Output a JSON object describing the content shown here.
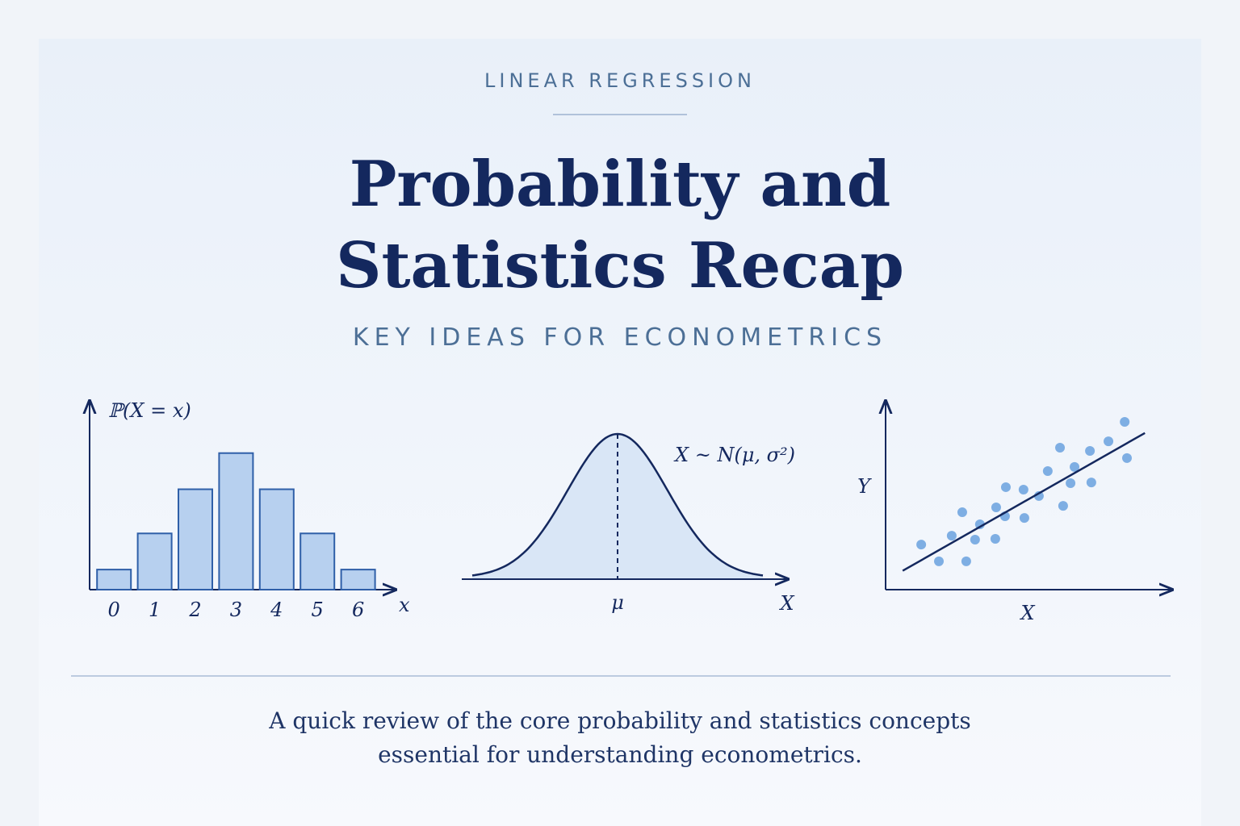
{
  "header": {
    "eyebrow": "LINEAR REGRESSION",
    "title_lines": [
      "Probability and",
      "Statistics Recap"
    ],
    "subtitle": "KEY IDEAS FOR ECONOMETRICS"
  },
  "chart_data": [
    {
      "type": "bar",
      "ylabel": "ℙ(X = x)",
      "xlabel": "x",
      "categories": [
        "0",
        "1",
        "2",
        "3",
        "4",
        "5",
        "6"
      ],
      "values": [
        0.05,
        0.14,
        0.25,
        0.34,
        0.25,
        0.14,
        0.05
      ],
      "ylim": [
        0,
        0.47
      ],
      "color": "#b7d0ef"
    },
    {
      "type": "density",
      "annotation": "X ~ N(μ, σ²)",
      "center_label": "μ",
      "xlabel": "X"
    },
    {
      "type": "scatter",
      "xlabel": "X",
      "ylabel": "Y",
      "color": "#7eaee3",
      "x": [
        1.25,
        1.87,
        2.32,
        2.69,
        2.83,
        3.14,
        3.31,
        3.85,
        3.88,
        4.19,
        4.22,
        4.84,
        4.87,
        5.38,
        5.69,
        6.12,
        6.23,
        6.49,
        6.63,
        7.17,
        7.22,
        7.82,
        8.39,
        8.47
      ],
      "values": [
        2.39,
        1.5,
        2.86,
        4.1,
        1.5,
        2.65,
        3.46,
        2.69,
        4.36,
        3.89,
        5.43,
        5.3,
        3.8,
        4.96,
        6.28,
        7.52,
        4.44,
        5.64,
        6.5,
        7.35,
        5.68,
        7.86,
        8.89,
        6.97
      ],
      "fit_line": {
        "x": [
          0.6,
          9.1
        ],
        "values": [
          1.0,
          8.3
        ]
      },
      "xlim": [
        0,
        10
      ],
      "ylim": [
        0,
        10
      ]
    }
  ],
  "footer": {
    "lines": [
      "A quick review of the core probability and statistics concepts",
      "essential for understanding econometrics."
    ]
  }
}
